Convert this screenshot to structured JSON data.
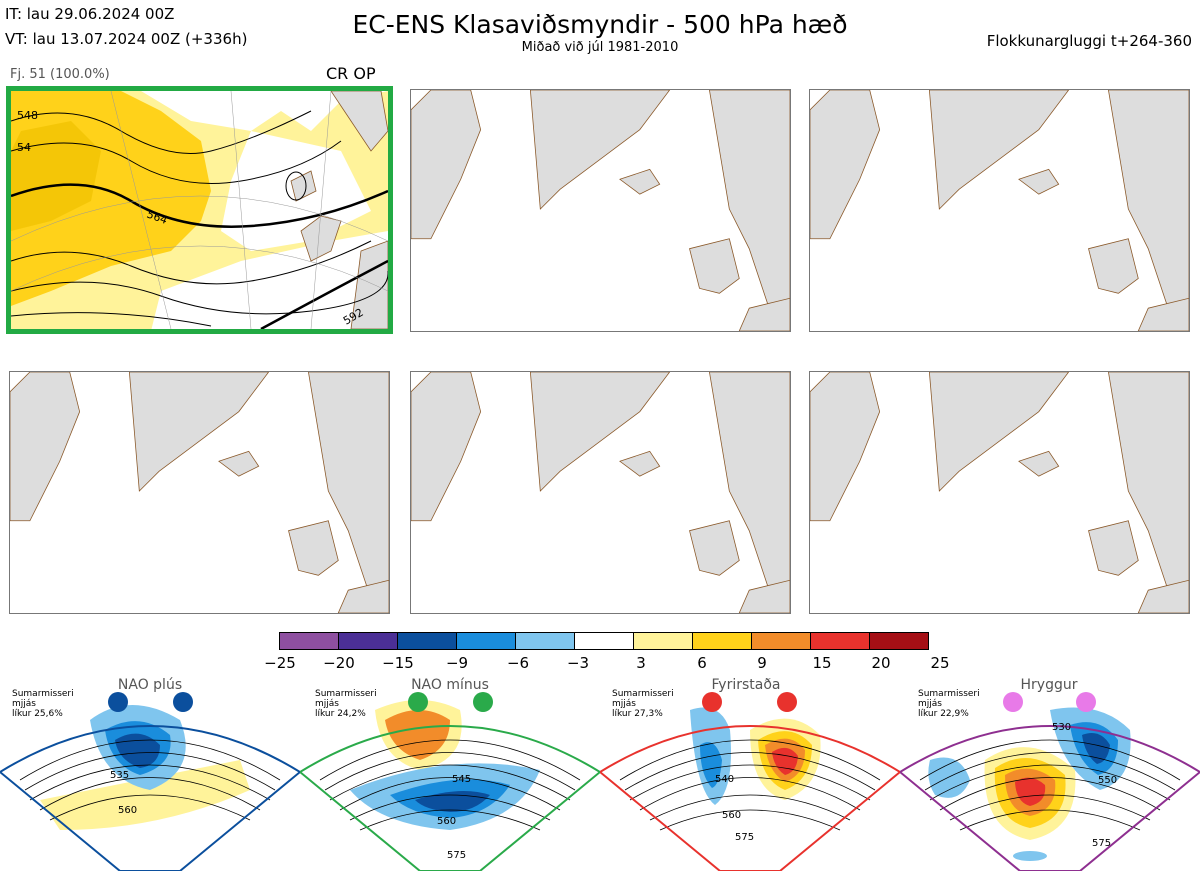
{
  "header": {
    "it_line": "IT: lau 29.06.2024 00Z",
    "vt_line": "VT: lau 13.07.2024 00Z  (+336h)",
    "title": "EC-ENS Klasaviðsmyndir - 500 hPa hæð",
    "subtitle": "Miðað við júl 1981-2010",
    "window": "Flokkunargluggi t+264-360"
  },
  "cluster": {
    "label": "Fj. 51 (100.0%)",
    "tag": "CR OP",
    "contours": [
      "548",
      "564",
      "592",
      "54"
    ]
  },
  "colorbar": {
    "colors": [
      "#8e4fa0",
      "#4b2f96",
      "#0b4f9d",
      "#1a8ddc",
      "#7fc5ee",
      "#ffffff",
      "#fff39a",
      "#ffd21a",
      "#f28c2a",
      "#e8322d",
      "#a50f15"
    ],
    "ticks": [
      "−25",
      "−20",
      "−15",
      "−9",
      "−6",
      "−3",
      "3",
      "6",
      "9",
      "15",
      "20",
      "25"
    ]
  },
  "regimes": [
    {
      "name": "NAO plús",
      "note": "Sumarmisseri\nmjjás\nlíkur 25,6%",
      "border": "#0b4f9d",
      "dot": "#0b4f9d",
      "labels": [
        "535",
        "560"
      ]
    },
    {
      "name": "NAO mínus",
      "note": "Sumarmisseri\nmjjás\nlíkur 24,2%",
      "border": "#2aaa4a",
      "dot": "#2aaa4a",
      "labels": [
        "545",
        "560",
        "575"
      ]
    },
    {
      "name": "Fyrirstaða",
      "note": "Sumarmisseri\nmjjás\nlíkur 27,3%",
      "border": "#e8322d",
      "dot": "#e8322d",
      "labels": [
        "540",
        "560",
        "575"
      ]
    },
    {
      "name": "Hryggur",
      "note": "Sumarmisseri\nmjjás\nlíkur 22,9%",
      "border": "#8e2f90",
      "dot": "#e87ae8",
      "labels": [
        "530",
        "550",
        "575"
      ]
    }
  ]
}
